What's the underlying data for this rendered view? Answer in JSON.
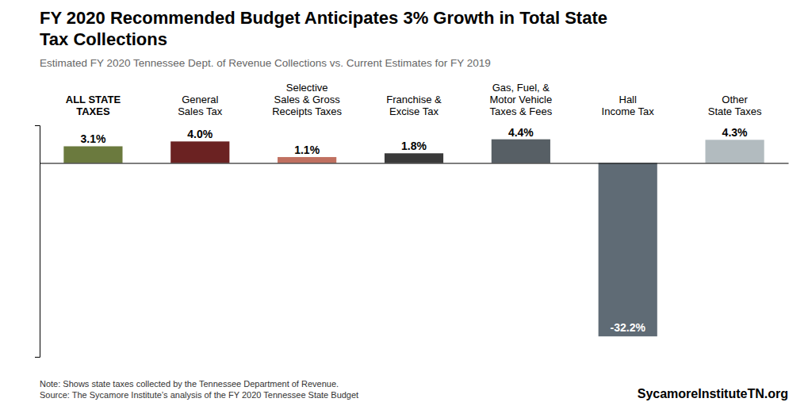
{
  "chart_data": {
    "type": "bar",
    "title": "FY 2020 Recommended Budget Anticipates 3% Growth in Total State\nTax Collections",
    "subtitle": "Estimated FY 2020 Tennessee Dept. of Revenue Collections vs. Current Estimates for FY 2019",
    "categories": [
      "ALL STATE\nTAXES",
      "General\nSales Tax",
      "Selective\nSales & Gross\nReceipts Taxes",
      "Franchise &\nExcise Tax",
      "Gas, Fuel, &\nMotor Vehicle\nTaxes & Fees",
      "Hall\nIncome Tax",
      "Other\nState Taxes"
    ],
    "values": [
      3.1,
      4.0,
      1.1,
      1.8,
      4.4,
      -32.2,
      4.3
    ],
    "value_labels": [
      "3.1%",
      "4.0%",
      "1.1%",
      "1.8%",
      "4.4%",
      "-32.2%",
      "4.3%"
    ],
    "colors": [
      "#6b7a3e",
      "#6b2222",
      "#c07060",
      "#3a3a3a",
      "#575f65",
      "#5f6b75",
      "#b2bbbf"
    ],
    "ylim": [
      -36,
      7
    ],
    "data_labels": true,
    "tick_labels": false,
    "annotations": [
      "Note: Shows state taxes collected by the Tennessee Department of Revenue.\nSource: The Sycamore Institute’s analysis of the FY 2020 Tennessee State Budget",
      "SycamoreInstituteTN.org"
    ]
  }
}
